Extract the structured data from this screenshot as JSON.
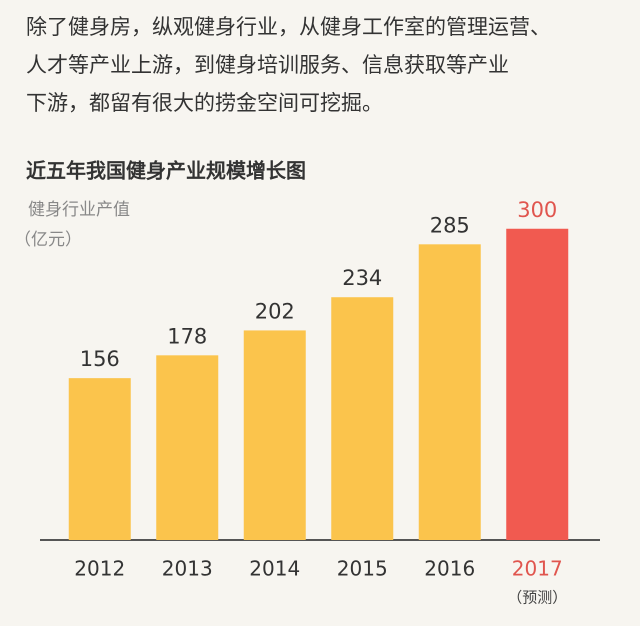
{
  "intro": [
    "除了健身房，纵观健身行业，从健身工作室的管理运营、",
    "人才等产业上游，到健身培训服务、信息获取等产业",
    "下游，都留有很大的捞金空间可挖掘。"
  ],
  "chart_data": {
    "type": "bar",
    "title": "近五年我国健身产业规模增长图",
    "ylabel": [
      "健身行业产值",
      "（亿元）"
    ],
    "categories": [
      "2012",
      "2013",
      "2014",
      "2015",
      "2016",
      "2017"
    ],
    "values": [
      156,
      178,
      202,
      234,
      285,
      300
    ],
    "colors": [
      "#fbc44c",
      "#fbc44c",
      "#fbc44c",
      "#fbc44c",
      "#fbc44c",
      "#f15a50"
    ],
    "label_colors": [
      "#333333",
      "#333333",
      "#333333",
      "#333333",
      "#333333",
      "#e0554e"
    ],
    "annotation": "（预测）",
    "ylim": [
      0,
      320
    ]
  }
}
